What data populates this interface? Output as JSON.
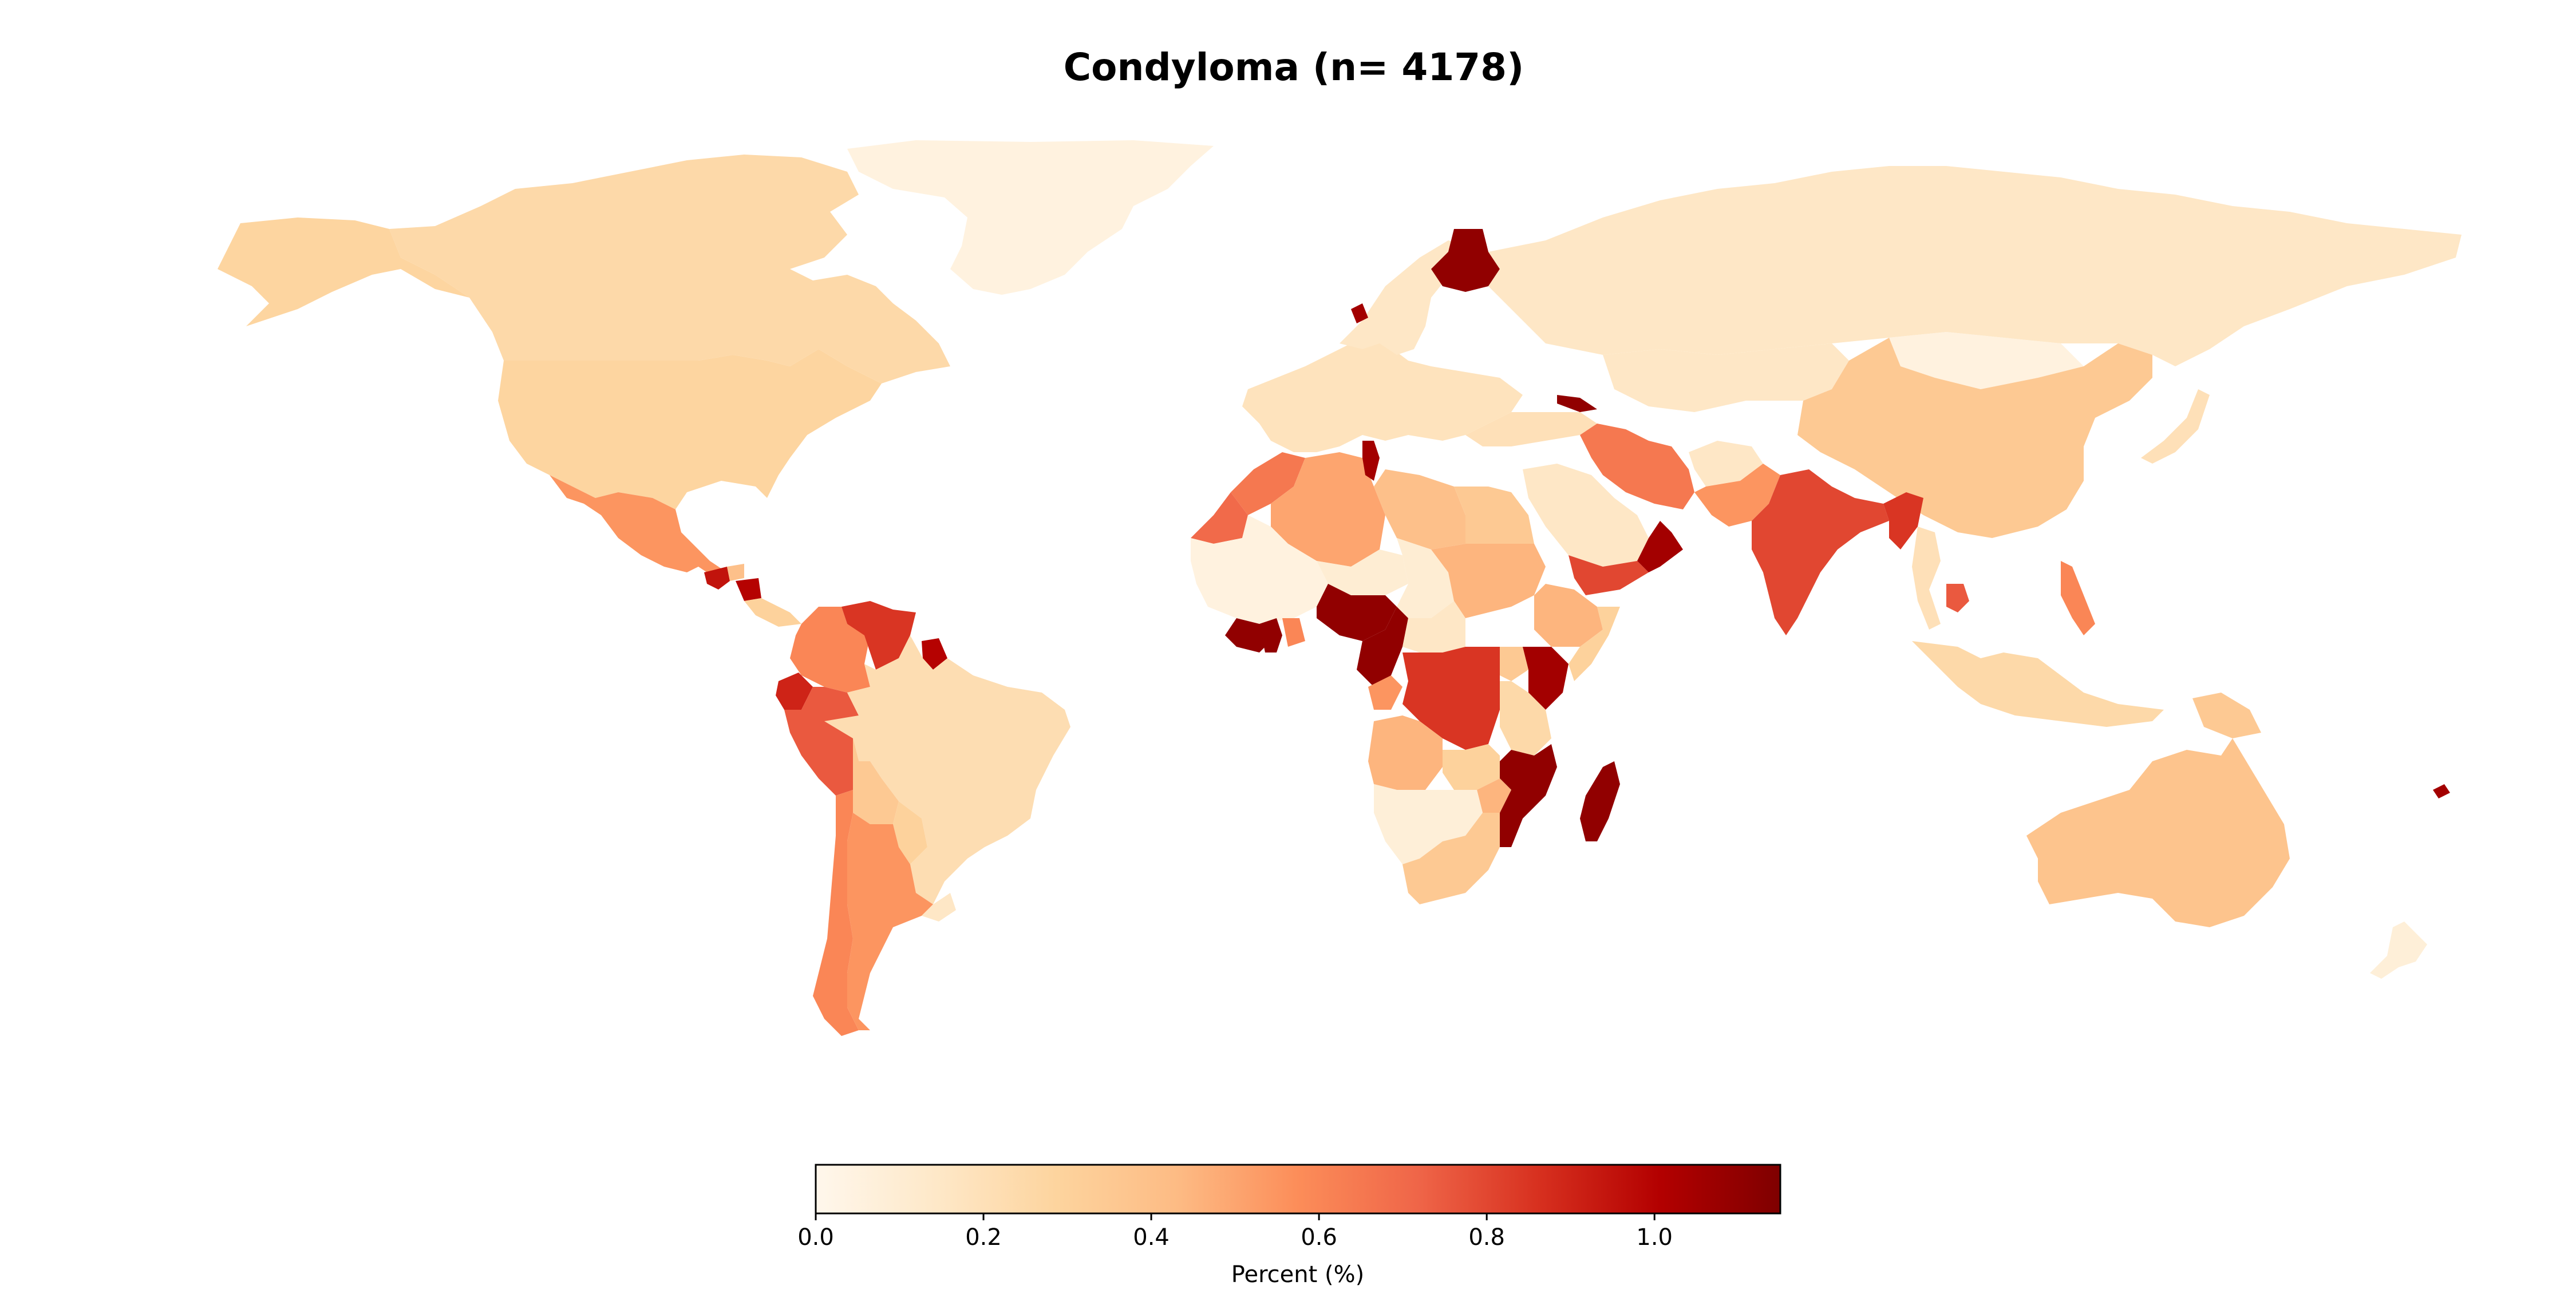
{
  "figure": {
    "title": "Condyloma (n= 4178)"
  },
  "colorbar": {
    "label": "Percent (%)",
    "min": 0.0,
    "max": 1.15,
    "colormap": "OrRd",
    "stops": [
      "#fff7ec",
      "#fee8c8",
      "#fdd49e",
      "#fdbb84",
      "#fc8d59",
      "#ef6548",
      "#d7301f",
      "#b30000",
      "#7f0000"
    ],
    "ticks": [
      0.0,
      0.2,
      0.4,
      0.6,
      0.8,
      1.0
    ],
    "tick_labels": [
      "0.0",
      "0.2",
      "0.4",
      "0.6",
      "0.8",
      "1.0"
    ]
  },
  "chart_data": {
    "type": "choropleth",
    "title": "Condyloma (n= 4178)",
    "colorbar_label": "Percent (%)",
    "value_range": [
      0.0,
      1.15
    ],
    "regions": [
      {
        "name": "Canada",
        "value": 0.25
      },
      {
        "name": "Alaska",
        "value": 0.28
      },
      {
        "name": "United States",
        "value": 0.28
      },
      {
        "name": "Greenland",
        "value": 0.05
      },
      {
        "name": "Mexico",
        "value": 0.55
      },
      {
        "name": "Guatemala",
        "value": 0.95
      },
      {
        "name": "Honduras",
        "value": 0.4
      },
      {
        "name": "Nicaragua",
        "value": 1.0
      },
      {
        "name": "Panama / Costa Rica",
        "value": 0.3
      },
      {
        "name": "Colombia",
        "value": 0.6
      },
      {
        "name": "Venezuela",
        "value": 0.85
      },
      {
        "name": "Guyana",
        "value": 1.0
      },
      {
        "name": "Ecuador",
        "value": 0.9
      },
      {
        "name": "Peru",
        "value": 0.75
      },
      {
        "name": "Brazil",
        "value": 0.22
      },
      {
        "name": "Bolivia",
        "value": 0.35
      },
      {
        "name": "Paraguay",
        "value": 0.3
      },
      {
        "name": "Argentina",
        "value": 0.55
      },
      {
        "name": "Chile",
        "value": 0.6
      },
      {
        "name": "Uruguay",
        "value": 0.15
      },
      {
        "name": "Morocco",
        "value": 0.65
      },
      {
        "name": "Western Sahara",
        "value": 0.7
      },
      {
        "name": "Algeria",
        "value": 0.5
      },
      {
        "name": "Tunisia",
        "value": 1.05
      },
      {
        "name": "Libya",
        "value": 0.4
      },
      {
        "name": "Egypt",
        "value": 0.35
      },
      {
        "name": "West Africa (Mali, Mauritania)",
        "value": 0.05
      },
      {
        "name": "Niger",
        "value": 0.1
      },
      {
        "name": "Nigeria",
        "value": 1.1
      },
      {
        "name": "Chad",
        "value": 0.1
      },
      {
        "name": "Sudan",
        "value": 0.45
      },
      {
        "name": "Ethiopia",
        "value": 0.45
      },
      {
        "name": "Somalia",
        "value": 0.3
      },
      {
        "name": "Ghana",
        "value": 1.1
      },
      {
        "name": "Côte d'Ivoire",
        "value": 1.1
      },
      {
        "name": "Togo / Benin",
        "value": 0.6
      },
      {
        "name": "Cameroon",
        "value": 1.1
      },
      {
        "name": "Central African Republic",
        "value": 0.15
      },
      {
        "name": "Gabon",
        "value": 0.55
      },
      {
        "name": "DR Congo",
        "value": 0.85
      },
      {
        "name": "Uganda",
        "value": 0.35
      },
      {
        "name": "Kenya",
        "value": 1.05
      },
      {
        "name": "Tanzania",
        "value": 0.25
      },
      {
        "name": "Angola",
        "value": 0.45
      },
      {
        "name": "Zambia",
        "value": 0.3
      },
      {
        "name": "Mozambique",
        "value": 1.1
      },
      {
        "name": "Zimbabwe",
        "value": 0.45
      },
      {
        "name": "Namibia / Botswana",
        "value": 0.08
      },
      {
        "name": "South Africa",
        "value": 0.35
      },
      {
        "name": "Madagascar",
        "value": 1.1
      },
      {
        "name": "Russia",
        "value": 0.15
      },
      {
        "name": "Finland",
        "value": 1.1
      },
      {
        "name": "Sweden / Norway",
        "value": 0.15
      },
      {
        "name": "Denmark",
        "value": 1.05
      },
      {
        "name": "Western Europe",
        "value": 0.18
      },
      {
        "name": "Georgia",
        "value": 1.1
      },
      {
        "name": "Turkey",
        "value": 0.2
      },
      {
        "name": "Iran",
        "value": 0.65
      },
      {
        "name": "Saudi Arabia",
        "value": 0.15
      },
      {
        "name": "Yemen",
        "value": 0.8
      },
      {
        "name": "Oman",
        "value": 1.05
      },
      {
        "name": "Kazakhstan",
        "value": 0.15
      },
      {
        "name": "Mongolia",
        "value": 0.05
      },
      {
        "name": "China",
        "value": 0.35
      },
      {
        "name": "Afghanistan",
        "value": 0.15
      },
      {
        "name": "Pakistan",
        "value": 0.55
      },
      {
        "name": "India",
        "value": 0.8
      },
      {
        "name": "Bangladesh / Myanmar",
        "value": 0.85
      },
      {
        "name": "Thailand",
        "value": 0.2
      },
      {
        "name": "Cambodia",
        "value": 0.75
      },
      {
        "name": "Philippines",
        "value": 0.6
      },
      {
        "name": "Indonesia",
        "value": 0.25
      },
      {
        "name": "Papua New Guinea",
        "value": 0.35
      },
      {
        "name": "Japan",
        "value": 0.2
      },
      {
        "name": "Australia",
        "value": 0.38
      },
      {
        "name": "New Zealand",
        "value": 0.08
      },
      {
        "name": "Fiji",
        "value": 1.05
      }
    ]
  }
}
